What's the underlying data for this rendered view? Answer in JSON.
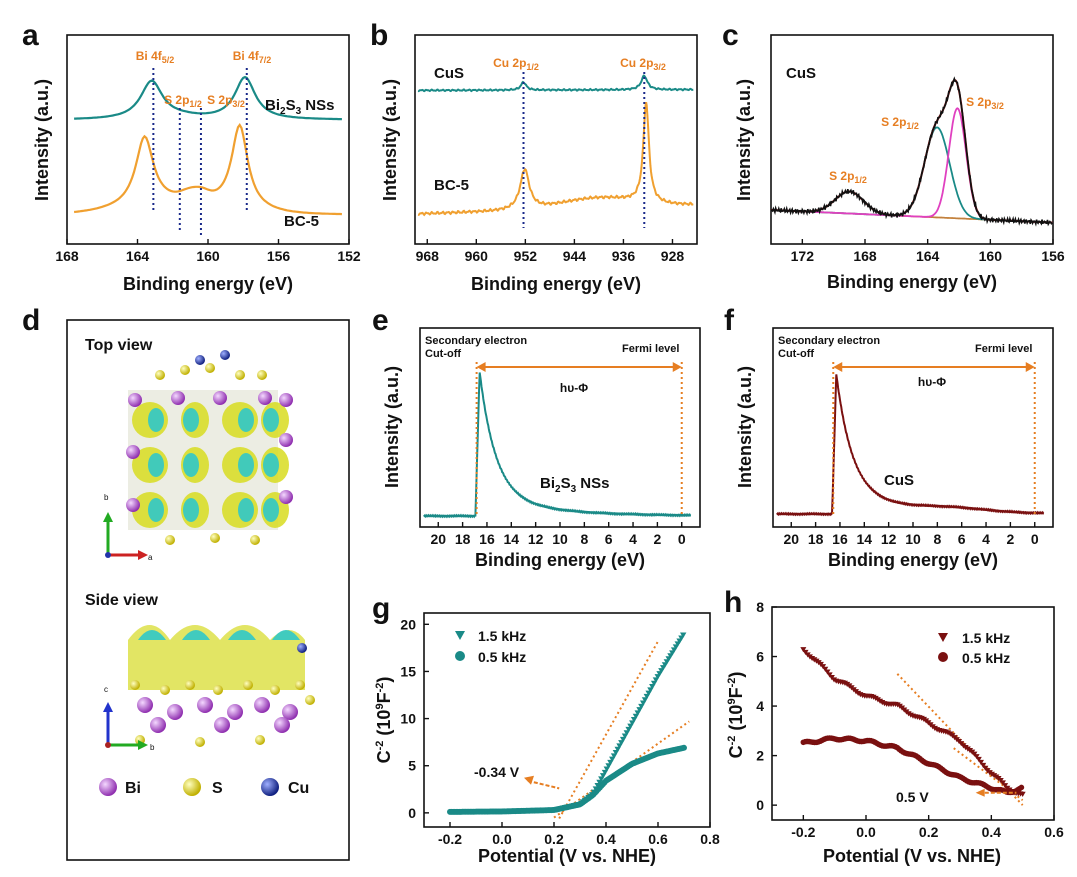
{
  "colors": {
    "teal": "#1a8a87",
    "orange": "#f0a030",
    "darkred": "#7a1010",
    "annot": "#e67e22",
    "magenta": "#e040c0",
    "black": "#111111"
  },
  "panels": {
    "a": {
      "letter": "a",
      "xlabel": "Binding energy (eV)",
      "ylabel": "Intensity (a.u.)",
      "xticks": [
        "168",
        "164",
        "160",
        "156",
        "152"
      ],
      "peaks": [
        {
          "label": "Bi 4f",
          "sub": "5/2"
        },
        {
          "label": "S 2p",
          "sub": "1/2"
        },
        {
          "label": "S 2p",
          "sub": "3/2"
        },
        {
          "label": "Bi 4f",
          "sub": "7/2"
        }
      ],
      "series": [
        {
          "name_main": "Bi",
          "name_s1": "2",
          "name_mid": "S",
          "name_s2": "3",
          "name_end": " NSs"
        },
        {
          "name": "BC-5"
        }
      ]
    },
    "b": {
      "letter": "b",
      "xlabel": "Binding energy (eV)",
      "ylabel": "Intensity (a.u.)",
      "xticks": [
        "968",
        "960",
        "952",
        "944",
        "936",
        "928"
      ],
      "peaks": [
        {
          "label": "Cu 2p",
          "sub": "1/2"
        },
        {
          "label": "Cu 2p",
          "sub": "3/2"
        }
      ],
      "series": [
        {
          "name": "CuS"
        },
        {
          "name": "BC-5"
        }
      ]
    },
    "c": {
      "letter": "c",
      "xlabel": "Binding energy (eV)",
      "ylabel": "Intensity (a.u.)",
      "xticks": [
        "172",
        "168",
        "164",
        "160",
        "156"
      ],
      "sample": "CuS",
      "peaks": [
        {
          "label": "S 2p",
          "sub": "1/2"
        },
        {
          "label": "S 2p",
          "sub": "1/2"
        },
        {
          "label": "S 2p",
          "sub": "3/2"
        }
      ]
    },
    "d": {
      "letter": "d",
      "top_view": "Top view",
      "side_view": "Side view",
      "axis_b": "b",
      "axis_a": "a",
      "axis_c": "c",
      "axis_b2": "b",
      "legend": [
        {
          "name": "Bi",
          "color": "#b060c8"
        },
        {
          "name": "S",
          "color": "#e0d020"
        },
        {
          "name": "Cu",
          "color": "#2040c0"
        }
      ]
    },
    "e": {
      "letter": "e",
      "xlabel": "Binding energy (eV)",
      "ylabel": "Intensity (a.u.)",
      "xticks": [
        "20",
        "18",
        "16",
        "14",
        "12",
        "10",
        "8",
        "6",
        "4",
        "2",
        "0"
      ],
      "cutoff1": "Secondary electron",
      "cutoff2": "Cut-off",
      "fermi": "Fermi level",
      "hv": "hυ-Φ",
      "sample_main": "Bi",
      "s1": "2",
      "mid": "S",
      "s2": "3",
      "end": " NSs"
    },
    "f": {
      "letter": "f",
      "xlabel": "Binding energy (eV)",
      "ylabel": "Intensity (a.u.)",
      "xticks": [
        "20",
        "18",
        "16",
        "14",
        "12",
        "10",
        "8",
        "6",
        "4",
        "2",
        "0"
      ],
      "cutoff1": "Secondary electron",
      "cutoff2": "Cut-off",
      "fermi": "Fermi level",
      "hv": "hυ-Φ",
      "sample": "CuS"
    },
    "g": {
      "letter": "g",
      "xlabel": "Potential (V vs. NHE)",
      "ylabel_main": "C",
      "ylabel_sup1": "-2",
      "ylabel_mid": " (10",
      "ylabel_sup2": "9",
      "ylabel_mid2": "F",
      "ylabel_sup3": "-2",
      "ylabel_end": ")",
      "xticks": [
        "-0.2",
        "0.0",
        "0.2",
        "0.4",
        "0.6",
        "0.8"
      ],
      "yticks": [
        "0",
        "5",
        "10",
        "15",
        "20"
      ],
      "legend": [
        "1.5 kHz",
        "0.5 kHz"
      ],
      "annotation": "-0.34 V"
    },
    "h": {
      "letter": "h",
      "xlabel": "Potential (V vs. NHE)",
      "ylabel_main": "C",
      "ylabel_sup1": "-2",
      "ylabel_mid": " (10",
      "ylabel_sup2": "9",
      "ylabel_mid2": "F",
      "ylabel_sup3": "-2",
      "ylabel_end": ")",
      "xticks": [
        "-0.2",
        "0.0",
        "0.2",
        "0.4",
        "0.6"
      ],
      "yticks": [
        "0",
        "2",
        "4",
        "6",
        "8"
      ],
      "legend": [
        "1.5 kHz",
        "0.5 kHz"
      ],
      "annotation": "0.5 V"
    }
  },
  "chart_data": [
    {
      "type": "line",
      "panel": "a",
      "xlabel": "Binding energy (eV)",
      "ylabel": "Intensity (a.u.)",
      "xlim": [
        168,
        152
      ],
      "series": [
        {
          "name": "Bi2S3 NSs",
          "peaks_eV": [
            163.2,
            157.9
          ]
        },
        {
          "name": "BC-5",
          "peaks_eV": [
            163.6,
            158.2,
            161.0
          ]
        }
      ],
      "markers_eV": [
        163.1,
        161.6,
        160.4,
        157.8
      ]
    },
    {
      "type": "line",
      "panel": "b",
      "xlabel": "Binding energy (eV)",
      "ylabel": "Intensity (a.u.)",
      "xlim": [
        968,
        924
      ],
      "series": [
        {
          "name": "CuS",
          "peaks_eV": [
            952.3,
            932.6
          ]
        },
        {
          "name": "BC-5",
          "peaks_eV": [
            952.1,
            932.3
          ]
        }
      ],
      "markers_eV": [
        952.3,
        932.6
      ]
    },
    {
      "type": "line",
      "panel": "c",
      "xlabel": "Binding energy (eV)",
      "ylabel": "Intensity (a.u.)",
      "xlim": [
        174,
        156
      ],
      "series": [
        {
          "name": "CuS",
          "peaks_eV": [
            169.0,
            163.4,
            162.1
          ]
        }
      ]
    },
    {
      "type": "line",
      "panel": "e",
      "xlabel": "Binding energy (eV)",
      "ylabel": "Intensity (a.u.)",
      "xlim": [
        21,
        -1
      ],
      "cutoff_eV": 16.6,
      "fermi_eV": 0
    },
    {
      "type": "line",
      "panel": "f",
      "xlabel": "Binding energy (eV)",
      "ylabel": "Intensity (a.u.)",
      "xlim": [
        21,
        -1
      ],
      "cutoff_eV": 16.3,
      "fermi_eV": 0
    },
    {
      "type": "scatter",
      "panel": "g",
      "xlabel": "Potential (V vs. NHE)",
      "ylabel": "C-2 (10^9 F-2)",
      "xlim": [
        -0.3,
        0.8
      ],
      "ylim": [
        -1,
        21
      ],
      "series": [
        {
          "name": "1.5 kHz",
          "x": [
            -0.2,
            0.0,
            0.2,
            0.3,
            0.35,
            0.4,
            0.5,
            0.6,
            0.7
          ],
          "y": [
            0.1,
            0.15,
            0.3,
            0.9,
            2.0,
            4.5,
            9.5,
            14.5,
            19.0
          ]
        },
        {
          "name": "0.5 kHz",
          "x": [
            -0.2,
            0.0,
            0.2,
            0.3,
            0.35,
            0.4,
            0.5,
            0.6,
            0.7
          ],
          "y": [
            0.1,
            0.15,
            0.3,
            0.9,
            1.9,
            3.4,
            5.2,
            6.3,
            6.9
          ]
        }
      ],
      "flatband_V": -0.34
    },
    {
      "type": "scatter",
      "panel": "h",
      "xlabel": "Potential (V vs. NHE)",
      "ylabel": "C-2 (10^9 F-2)",
      "xlim": [
        -0.3,
        0.6
      ],
      "ylim": [
        -0.5,
        8
      ],
      "series": [
        {
          "name": "1.5 kHz",
          "x": [
            -0.2,
            -0.1,
            0.0,
            0.1,
            0.2,
            0.3,
            0.4,
            0.45,
            0.5
          ],
          "y": [
            6.3,
            5.1,
            4.4,
            4.0,
            3.3,
            2.6,
            1.3,
            0.7,
            0.4
          ]
        },
        {
          "name": "0.5 kHz",
          "x": [
            -0.2,
            -0.1,
            0.0,
            0.1,
            0.2,
            0.3,
            0.4,
            0.45,
            0.5
          ],
          "y": [
            2.5,
            2.7,
            2.6,
            2.3,
            1.7,
            1.1,
            0.7,
            0.5,
            0.7
          ]
        }
      ],
      "flatband_V": 0.5
    }
  ]
}
